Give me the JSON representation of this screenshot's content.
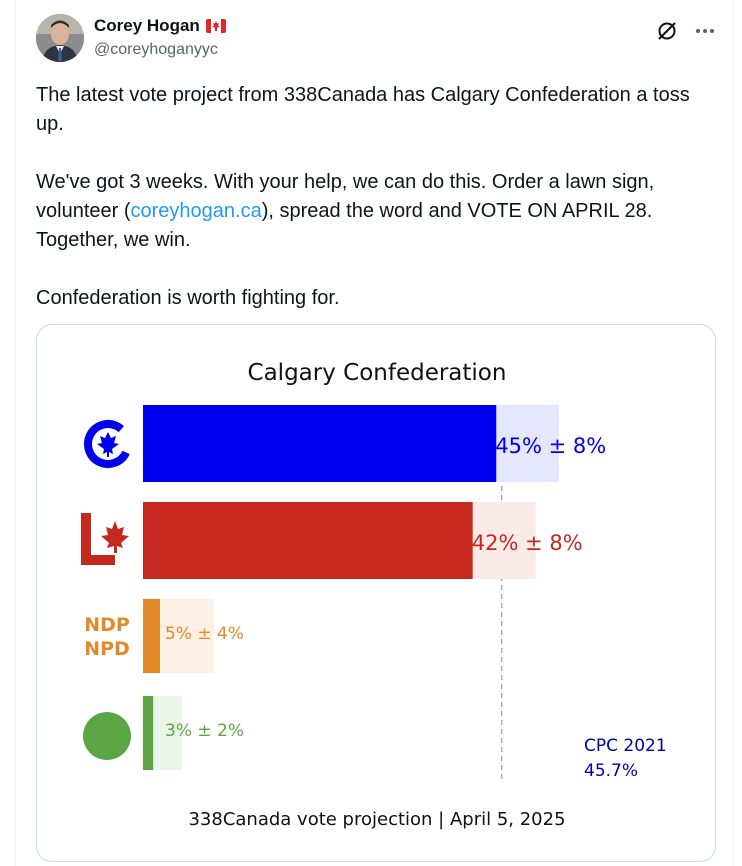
{
  "author": {
    "name": "Corey Hogan",
    "flag_icon": "canada-flag-icon",
    "handle": "@coreyhoganyyc"
  },
  "header_icons": [
    "grok-icon",
    "more-icon"
  ],
  "tweet": {
    "line1": "The latest vote project from 338Canada has Calgary Confederation a toss up.",
    "para2_a": "We've got 3 weeks. With your help, we can do this. Order a lawn sign, volunteer (",
    "link": "coreyhogan.ca",
    "para2_b": "), spread the word and VOTE ON APRIL 28. Together, we win.",
    "line3": "Confederation is worth fighting for."
  },
  "colors": {
    "link": "#1d9bf0",
    "cpc": "#0000ee",
    "lpc": "#c5281f",
    "ndp": "#e08a2a",
    "grn": "#5ba545"
  },
  "chart_data": {
    "type": "bar",
    "orientation": "horizontal",
    "title": "Calgary Confederation",
    "footer": "338Canada vote projection | April 5, 2025",
    "xlim": [
      0,
      100
    ],
    "series": [
      {
        "party": "CPC",
        "logo_icon": "conservative-logo-icon",
        "value": 45,
        "margin": 8,
        "label": "45% ± 8%",
        "color": "#0000ee",
        "band_color": "#e5e7fd"
      },
      {
        "party": "LPC",
        "logo_icon": "liberal-logo-icon",
        "value": 42,
        "margin": 8,
        "label": "42% ± 8%",
        "color": "#c5281f",
        "band_color": "#faeae8"
      },
      {
        "party": "NDP",
        "logo_text": [
          "NDP",
          "NPD"
        ],
        "value": 5,
        "margin": 4,
        "label": "5% ± 4%",
        "color": "#e08a2a",
        "band_color": "#fcefe3"
      },
      {
        "party": "GRN",
        "logo_icon": "green-circle-icon",
        "value": 3,
        "margin": 2,
        "label": "3% ± 2%",
        "color": "#5ba545",
        "band_color": "#ebf4e8"
      }
    ],
    "reference": {
      "label_line1": "CPC 2021",
      "label_line2": "45.7%",
      "value": 45.7
    }
  }
}
